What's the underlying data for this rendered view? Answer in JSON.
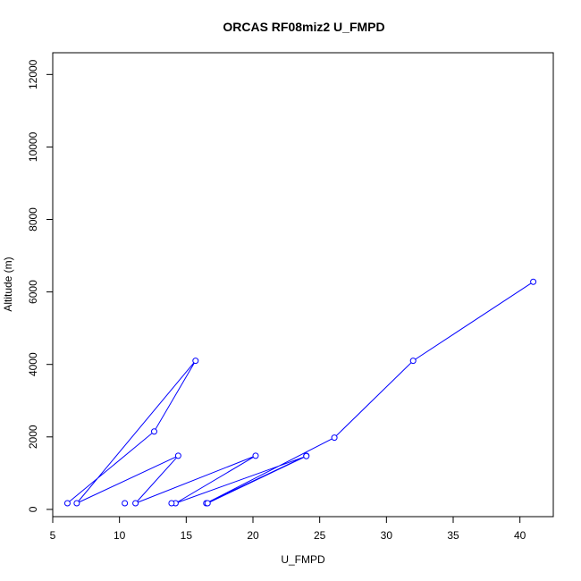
{
  "chart_data": {
    "type": "line",
    "title": "ORCAS RF08miz2 U_FMPD",
    "xlabel": "U_FMPD",
    "ylabel": "Altitude (m)",
    "xlim": [
      5,
      42.5
    ],
    "ylim": [
      -200,
      12600
    ],
    "xticks": [
      5,
      10,
      15,
      20,
      25,
      30,
      35,
      40
    ],
    "yticks": [
      0,
      2000,
      4000,
      6000,
      8000,
      10000,
      12000
    ],
    "grid": false,
    "series": [
      {
        "color": "#0000ff",
        "marker": "open-circle",
        "points": [
          {
            "x": 41.0,
            "y": 6280
          },
          {
            "x": 32.0,
            "y": 4100
          },
          {
            "x": 26.1,
            "y": 1980
          },
          {
            "x": 16.5,
            "y": 170
          },
          {
            "x": 24.0,
            "y": 1480
          },
          {
            "x": 16.6,
            "y": 170
          },
          {
            "x": 24.0,
            "y": 1470
          },
          {
            "x": 14.2,
            "y": 170
          },
          {
            "x": 20.2,
            "y": 1480
          },
          {
            "x": 11.2,
            "y": 170
          },
          {
            "x": 14.4,
            "y": 1480
          },
          {
            "x": 6.8,
            "y": 170
          },
          {
            "x": 15.7,
            "y": 4100
          },
          {
            "x": 12.6,
            "y": 2150
          },
          {
            "x": 6.1,
            "y": 170
          }
        ]
      }
    ],
    "extra_points": [
      {
        "x": 10.4,
        "y": 170
      },
      {
        "x": 13.9,
        "y": 170
      }
    ]
  }
}
